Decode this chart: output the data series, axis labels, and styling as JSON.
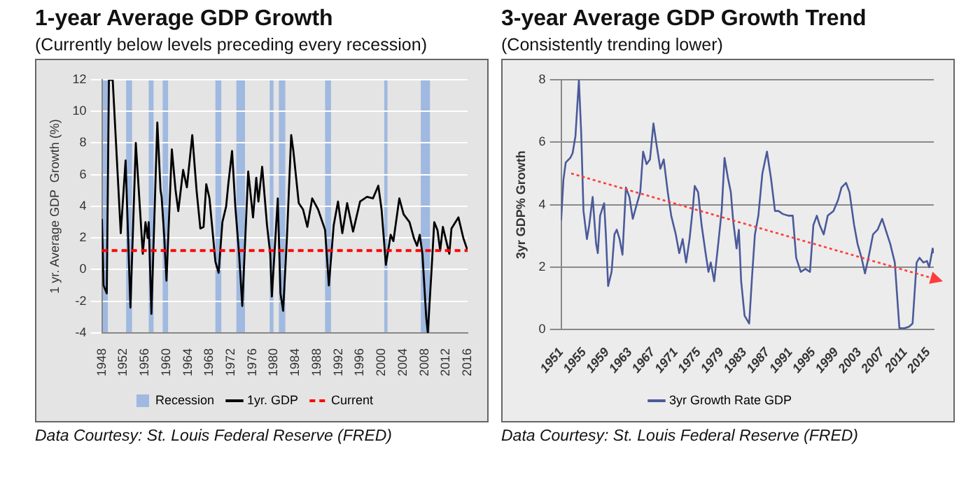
{
  "chart_data": [
    {
      "type": "line",
      "title": "1-year Average GDP Growth",
      "subtitle": "(Currently below levels preceding every recession)",
      "ylabel": "1 yr. Average GDP  Growth (%)",
      "annotations": [
        "Data Courtesy: St. Louis Federal Reserve (FRED)"
      ],
      "xlim": [
        1948,
        2016
      ],
      "xticks": [
        1948,
        1952,
        1956,
        1960,
        1964,
        1968,
        1972,
        1976,
        1980,
        1984,
        1988,
        1992,
        1996,
        2000,
        2004,
        2008,
        2012,
        2016
      ],
      "ylim": [
        -4,
        12
      ],
      "yticks": [
        -4,
        -2,
        0,
        2,
        4,
        6,
        8,
        10,
        12
      ],
      "grid": "y",
      "legend": "bottom",
      "marker": "none",
      "series": [
        {
          "name": "1yr. GDP",
          "color": "#000000",
          "x": [
            1948.0,
            1948.3,
            1948.9,
            1949.3,
            1950.0,
            1951.5,
            1952.4,
            1953.3,
            1954.3,
            1955.6,
            1956.1,
            1956.5,
            1956.7,
            1957.2,
            1958.3,
            1958.9,
            1959.1,
            1959.6,
            1960.0,
            1961.0,
            1961.7,
            1962.2,
            1963.1,
            1963.8,
            1964.8,
            1965.6,
            1966.3,
            1966.9,
            1967.4,
            1968.0,
            1969.1,
            1969.7,
            1970.4,
            1971.1,
            1971.5,
            1972.2,
            1972.8,
            1973.5,
            1974.1,
            1975.2,
            1976.1,
            1976.7,
            1977.1,
            1977.8,
            1978.7,
            1979.3,
            1979.6,
            1980.7,
            1981.2,
            1981.7,
            1982.4,
            1983.2,
            1983.6,
            1984.6,
            1985.4,
            1986.2,
            1987.1,
            1988.2,
            1989.5,
            1990.2,
            1991.1,
            1991.9,
            1992.7,
            1993.6,
            1994.7,
            1996.0,
            1997.3,
            1998.4,
            1999.4,
            2000.0,
            2000.8,
            2001.7,
            2002.2,
            2003.3,
            2004.1,
            2005.2,
            2006.0,
            2006.6,
            2007.1,
            2007.6,
            2008.3,
            2008.6,
            2009.3,
            2009.8,
            2010.4,
            2010.9,
            2011.4,
            2012.6,
            2013.0,
            2014.3,
            2015.2,
            2016.0
          ],
          "values": [
            3.2,
            -1.0,
            -1.5,
            12,
            12,
            2.3,
            6.9,
            -2.4,
            8.0,
            1.0,
            3.0,
            2.0,
            3.0,
            -2.8,
            9.3,
            5.0,
            4.6,
            2.0,
            -0.7,
            7.6,
            5.0,
            3.7,
            6.3,
            5.2,
            8.5,
            5.0,
            2.6,
            2.7,
            5.4,
            4.5,
            0.5,
            -0.2,
            3.0,
            4.0,
            5.4,
            7.5,
            4.0,
            1.0,
            -2.3,
            6.2,
            3.3,
            5.8,
            4.3,
            6.5,
            2.8,
            1.0,
            -1.7,
            4.5,
            -1.5,
            -2.6,
            2.0,
            8.5,
            7.5,
            4.2,
            3.8,
            2.7,
            4.5,
            3.8,
            2.5,
            -1.0,
            2.8,
            4.3,
            2.3,
            4.2,
            2.4,
            4.3,
            4.6,
            4.5,
            5.3,
            3.8,
            0.3,
            2.2,
            1.8,
            4.5,
            3.5,
            3.0,
            2.0,
            1.5,
            2.2,
            1.0,
            -3.0,
            -4.0,
            0.0,
            3.0,
            2.5,
            1.2,
            2.7,
            1.0,
            2.6,
            3.3,
            2.0,
            1.2
          ]
        }
      ],
      "bands": [
        {
          "axis": "x",
          "from": 1948,
          "to": 1949.1,
          "label": "Recession",
          "color": "#9fb9e0"
        },
        {
          "axis": "x",
          "from": 1952.5,
          "to": 1953.6,
          "color": "#9fb9e0"
        },
        {
          "axis": "x",
          "from": 1956.7,
          "to": 1957.6,
          "color": "#9fb9e0"
        },
        {
          "axis": "x",
          "from": 1959.3,
          "to": 1960.3,
          "color": "#9fb9e0"
        },
        {
          "axis": "x",
          "from": 1969.1,
          "to": 1970.2,
          "color": "#9fb9e0"
        },
        {
          "axis": "x",
          "from": 1973.0,
          "to": 1974.6,
          "color": "#9fb9e0"
        },
        {
          "axis": "x",
          "from": 1979.2,
          "to": 1979.9,
          "color": "#9fb9e0"
        },
        {
          "axis": "x",
          "from": 1980.9,
          "to": 1982.1,
          "color": "#9fb9e0"
        },
        {
          "axis": "x",
          "from": 1989.5,
          "to": 1990.6,
          "color": "#9fb9e0"
        },
        {
          "axis": "x",
          "from": 2000.5,
          "to": 2001.1,
          "color": "#9fb9e0"
        },
        {
          "axis": "x",
          "from": 2007.3,
          "to": 2009.0,
          "color": "#9fb9e0"
        }
      ],
      "ref_lines": [
        {
          "axis": "y",
          "value": 1.2,
          "label": "Current",
          "color": "#ff0000",
          "line_style": "dashed"
        }
      ]
    },
    {
      "type": "line",
      "title": "3-year Average GDP Growth Trend",
      "subtitle": "(Consistently trending lower)",
      "ylabel": "3yr GDP% Growth",
      "annotations": [
        "Data Courtesy: St. Louis Federal Reserve (FRED)"
      ],
      "xlim": [
        1951,
        2016
      ],
      "xticks": [
        1951,
        1955,
        1959,
        1963,
        1967,
        1971,
        1975,
        1979,
        1983,
        1987,
        1991,
        1995,
        1999,
        2003,
        2007,
        2011,
        2015
      ],
      "ylim": [
        0,
        8
      ],
      "yticks": [
        0,
        2,
        4,
        6,
        8
      ],
      "grid": "y",
      "legend": "bottom",
      "marker": "none",
      "series": [
        {
          "name": "3yr Growth Rate GDP",
          "color": "#4a5a9a",
          "x": [
            1951.0,
            1951.4,
            1951.8,
            1952.6,
            1953.0,
            1953.5,
            1954.1,
            1954.5,
            1954.9,
            1955.5,
            1955.9,
            1956.5,
            1957.1,
            1957.4,
            1957.8,
            1958.5,
            1958.8,
            1959.2,
            1959.8,
            1960.3,
            1960.7,
            1961.2,
            1961.7,
            1962.3,
            1962.9,
            1963.5,
            1964.1,
            1964.8,
            1965.3,
            1965.9,
            1966.5,
            1967.1,
            1967.7,
            1968.3,
            1968.9,
            1969.6,
            1970.2,
            1971.0,
            1971.6,
            1972.2,
            1972.8,
            1973.4,
            1974.0,
            1974.3,
            1974.9,
            1975.5,
            1976.2,
            1976.7,
            1977.1,
            1977.7,
            1978.4,
            1979.0,
            1979.5,
            1980.1,
            1980.6,
            1981.0,
            1981.6,
            1982.0,
            1982.4,
            1983.0,
            1983.8,
            1984.3,
            1984.8,
            1985.4,
            1986.1,
            1986.9,
            1987.6,
            1988.3,
            1988.9,
            1989.7,
            1990.6,
            1991.4,
            1992.0,
            1992.8,
            1993.6,
            1994.4,
            1995.0,
            1995.6,
            1996.1,
            1996.8,
            1997.5,
            1998.5,
            1999.3,
            1999.9,
            2000.7,
            2001.3,
            2002.1,
            2002.7,
            2003.4,
            2004.0,
            2004.6,
            2005.4,
            2006.2,
            2007.0,
            2007.6,
            2008.4,
            2009.2,
            2010.0,
            2010.9,
            2011.7,
            2012.3,
            2013.0,
            2013.5,
            2014.2,
            2014.8,
            2015.2,
            2015.8,
            2016.0
          ],
          "values": [
            3.5,
            4.8,
            5.35,
            5.5,
            5.65,
            6.2,
            8.0,
            6.3,
            3.8,
            2.9,
            3.35,
            4.25,
            2.75,
            2.45,
            3.65,
            4.05,
            3.05,
            1.4,
            1.85,
            3.05,
            3.2,
            2.9,
            2.4,
            4.55,
            4.25,
            3.55,
            3.95,
            4.4,
            5.7,
            5.3,
            5.45,
            6.6,
            5.85,
            5.15,
            5.45,
            4.4,
            3.65,
            3.05,
            2.45,
            2.9,
            2.15,
            2.9,
            3.95,
            4.6,
            4.4,
            3.35,
            2.45,
            1.85,
            2.15,
            1.55,
            2.75,
            3.8,
            5.5,
            4.85,
            4.4,
            3.5,
            2.6,
            3.2,
            1.55,
            0.45,
            0.2,
            1.7,
            3.05,
            3.65,
            5.0,
            5.7,
            4.85,
            3.8,
            3.8,
            3.7,
            3.65,
            3.65,
            2.3,
            1.85,
            1.95,
            1.85,
            3.35,
            3.65,
            3.35,
            3.05,
            3.65,
            3.8,
            4.15,
            4.55,
            4.7,
            4.4,
            3.35,
            2.75,
            2.3,
            1.8,
            2.3,
            3.05,
            3.2,
            3.55,
            3.2,
            2.75,
            2.15,
            0.05,
            0.05,
            0.1,
            0.2,
            2.15,
            2.3,
            2.15,
            2.2,
            2.0,
            2.6,
            2.45
          ]
        }
      ]
    }
  ]
}
